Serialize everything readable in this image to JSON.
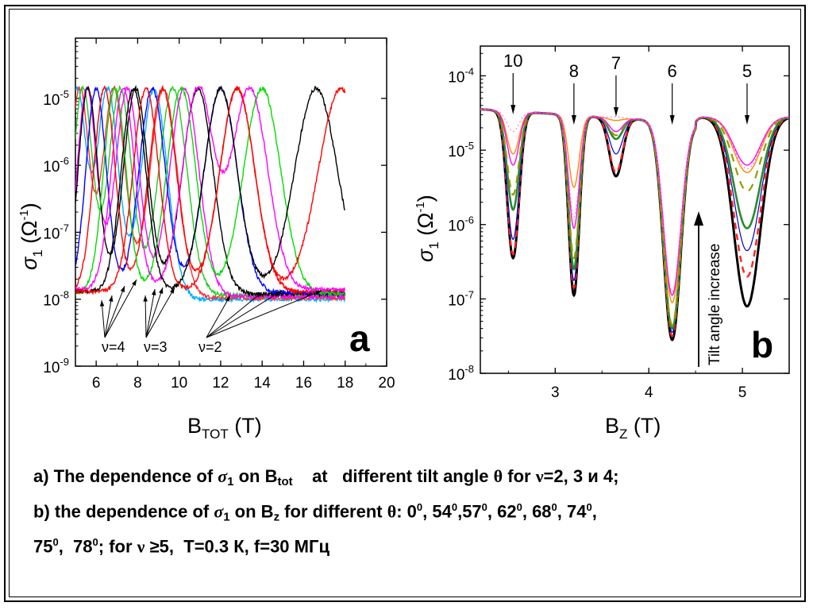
{
  "chart_data": [
    {
      "type": "line",
      "panel_label": "a",
      "xlabel": "B_TOT (T)",
      "xlabel_main": "B",
      "xlabel_sub": "TOT",
      "xlabel_unit": " (T)",
      "ylabel": "σ1 (Ω-1)",
      "xlim": [
        5,
        20
      ],
      "ylim_log10": [
        -9,
        -4.1
      ],
      "y_scale": "log",
      "x_ticks": [
        6,
        8,
        10,
        12,
        14,
        16,
        18,
        20
      ],
      "y_ticks": [
        -9,
        -8,
        -7,
        -6,
        -5
      ],
      "annotations": [
        "ν=4",
        "ν=3",
        "ν=2"
      ],
      "series": [
        {
          "color": "#00aaff",
          "peaks": [
            5.05,
            6.55,
            8.8
          ],
          "min": 1e-08,
          "end": 18
        },
        {
          "color": "#ff3333",
          "peaks": [
            5.2,
            6.85,
            9.25
          ],
          "min": 1.05e-08,
          "end": 18
        },
        {
          "color": "#22cc22",
          "peaks": [
            5.35,
            7.15,
            9.7
          ],
          "min": 1.15e-08,
          "end": 18
        },
        {
          "color": "#ff00ff",
          "peaks": [
            5.55,
            7.5,
            10.25
          ],
          "min": 1.1e-08,
          "end": 18
        },
        {
          "color": "#000000",
          "peaks": [
            5.6,
            7.9,
            10.9
          ],
          "min": 1.2e-08,
          "end": 18
        },
        {
          "color": "#0000ff",
          "peaks": [
            6.0,
            8.7,
            12.0
          ],
          "min": 1.25e-08,
          "end": 18
        },
        {
          "color": "#ff0000",
          "peaks": [
            6.4,
            9.2,
            12.8
          ],
          "min": 1.3e-08,
          "end": 18
        },
        {
          "color": "#00dd00",
          "peaks": [
            6.9,
            10.1,
            14.0
          ],
          "min": 1.2e-08,
          "end": 18
        },
        {
          "color": "#ff00ff",
          "peaks": [
            7.3,
            10.9,
            13.4
          ],
          "min": 1.4e-08,
          "end": 18
        },
        {
          "color": "#000000",
          "peaks": [
            7.8,
            12.0,
            16.6
          ],
          "min": 1.3e-08,
          "end": 18
        },
        {
          "color": "#ff0000",
          "peaks": [
            8.4,
            12.8,
            17.8
          ],
          "min": 1.3e-08,
          "end": 18
        }
      ]
    },
    {
      "type": "line",
      "panel_label": "b",
      "xlabel": "B_Z (T)",
      "xlabel_main": "B",
      "xlabel_sub": "Z",
      "xlabel_unit": " (T)",
      "ylabel": "σ1 (Ω-1)",
      "xlim": [
        2.2,
        5.5
      ],
      "ylim_log10": [
        -8,
        -3.6
      ],
      "y_scale": "log",
      "x_ticks": [
        3,
        4,
        5
      ],
      "y_ticks": [
        -8,
        -7,
        -6,
        -5,
        -4
      ],
      "filling_factors": [
        {
          "label": "10",
          "x": 2.55
        },
        {
          "label": "8",
          "x": 3.2
        },
        {
          "label": "7",
          "x": 3.65
        },
        {
          "label": "6",
          "x": 4.25
        },
        {
          "label": "5",
          "x": 5.05
        }
      ],
      "arrow_label": "Tilt angle increase",
      "series": [
        {
          "color": "#000000",
          "minima": [
            -6.45,
            -6.95,
            -5.35,
            -7.55,
            -7.1
          ]
        },
        {
          "color": "#ff2222",
          "minima": [
            -6.4,
            -6.85,
            -5.3,
            -7.5,
            -6.7
          ]
        },
        {
          "color": "#0000cc",
          "minima": [
            -6.2,
            -6.75,
            -5.05,
            -7.45,
            -6.35
          ]
        },
        {
          "color": "#2a8a2a",
          "minima": [
            -5.8,
            -6.6,
            -4.85,
            -7.4,
            -6.05
          ]
        },
        {
          "color": "#999900",
          "minima": [
            -5.6,
            -6.45,
            -4.8,
            -7.35,
            -5.55
          ]
        },
        {
          "color": "#ff8800",
          "minima": [
            -5.05,
            -5.5,
            -4.6,
            -7.05,
            -5.3
          ]
        },
        {
          "color": "#ff00ff",
          "minima": [
            -5.2,
            -6.05,
            -4.75,
            -6.95,
            -5.2
          ]
        },
        {
          "color": "#ee66ee",
          "minima": [
            -4.75,
            -5.9,
            -4.55,
            -6.9,
            -5.25
          ]
        }
      ]
    }
  ],
  "caption": {
    "line1": "a) The dependence of σ1 on Btot    at   different tilt angle θ for ν=2, 3 и 4;",
    "line2": "b) the dependence of σ1 on Bz for different θ: 00, 540,570, 620, 680, 740,",
    "line3": "750,  780; for ν ≥5,  T=0.3 К, f=30 МГц"
  }
}
